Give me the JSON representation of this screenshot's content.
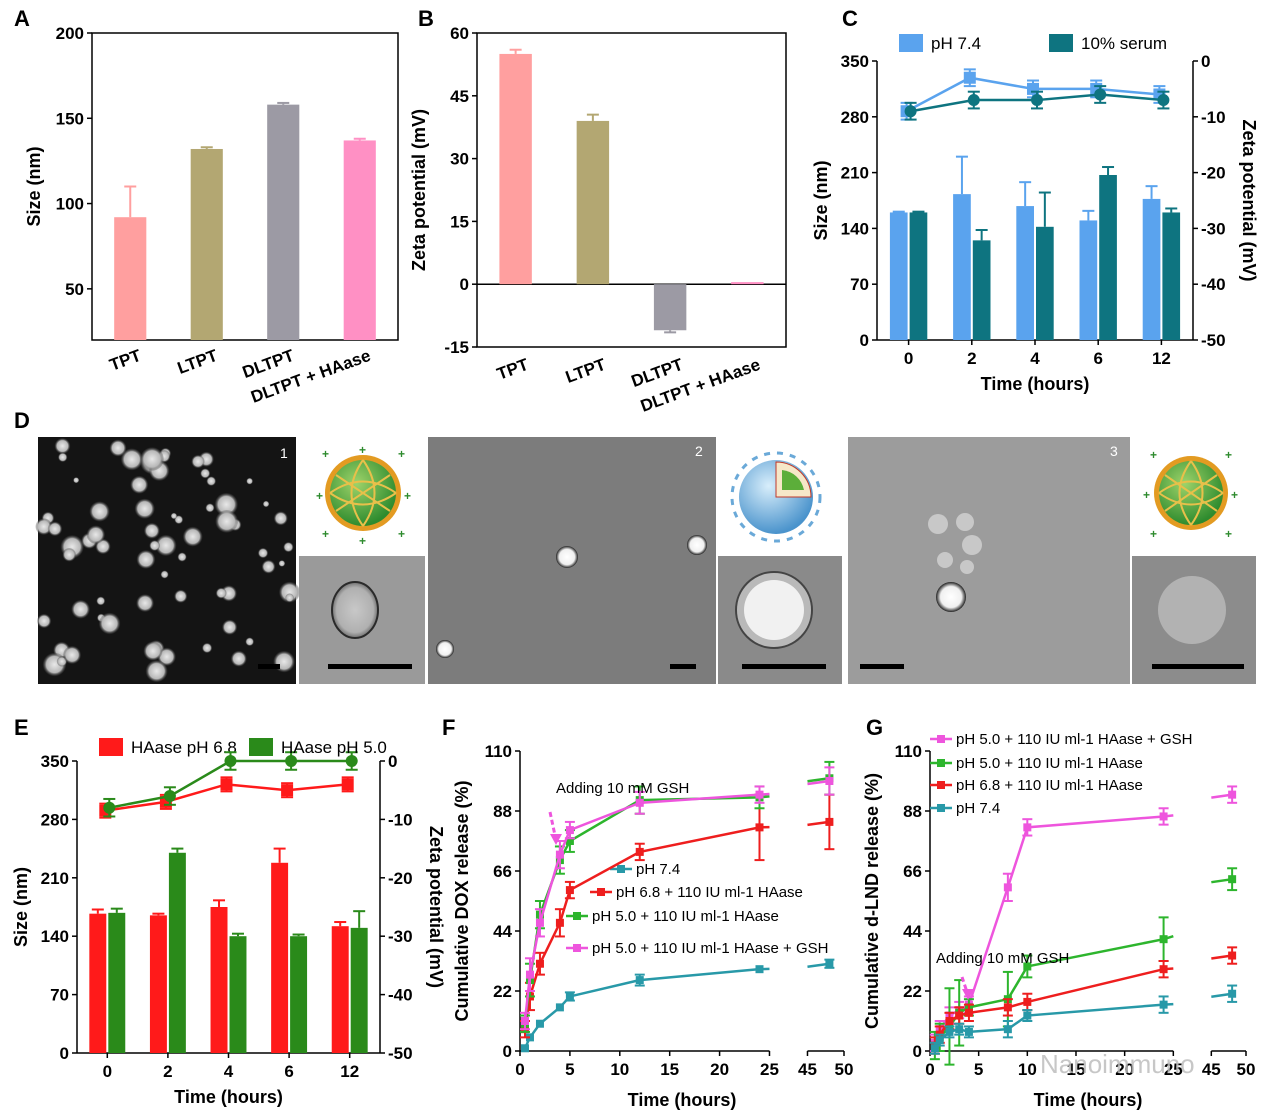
{
  "panel_labels": [
    "A",
    "B",
    "C",
    "D",
    "E",
    "F",
    "G"
  ],
  "watermark": "Nanoimmuno",
  "panel_d": {
    "image_numbers": [
      "1",
      "2",
      "3"
    ],
    "colors": {
      "tem_dark": "#1a1a1a",
      "tem_gray": "#8a8a8a",
      "sphere_green": "#2e8b2e",
      "sphere_orange": "#e39b22",
      "sphere_blue": "#6aa9d8"
    }
  },
  "chart_data": [
    {
      "panel": "A",
      "type": "bar",
      "categories": [
        "TPT",
        "LTPT",
        "DLTPT",
        "DLTPT + HAase"
      ],
      "values": [
        92,
        132,
        158,
        137
      ],
      "errors": [
        18,
        1,
        1,
        1
      ],
      "colors": [
        "#ff9f9f",
        "#b3a772",
        "#9c9aa4",
        "#ff90c4"
      ],
      "ylabel": "Size (nm)",
      "ylim": [
        20,
        200
      ],
      "yticks": [
        "50",
        "100",
        "150",
        "200"
      ]
    },
    {
      "panel": "B",
      "type": "bar",
      "categories": [
        "TPT",
        "LTPT",
        "DLTPT",
        "DLTPT + HAase"
      ],
      "values": [
        55,
        39,
        -11,
        0.5
      ],
      "errors": [
        1,
        1.5,
        0.5,
        0
      ],
      "colors": [
        "#ff9f9f",
        "#b3a772",
        "#9c9aa4",
        "#ff90c4"
      ],
      "ylabel": "Zeta potential (mV)",
      "ylim": [
        -15,
        60
      ],
      "yticks": [
        "-15",
        "0",
        "15",
        "30",
        "45",
        "60"
      ]
    },
    {
      "panel": "C",
      "type": "bar",
      "categories": [
        "0",
        "2",
        "4",
        "6",
        "12"
      ],
      "xlabel": "Time (hours)",
      "ylabel": "Size (nm)",
      "ylabel_right": "Zeta potential (mV)",
      "ylim": [
        0,
        350
      ],
      "ylim_right": [
        -50,
        0
      ],
      "yticks": [
        "0",
        "70",
        "140",
        "210",
        "280",
        "350"
      ],
      "yticks_right": [
        "0",
        "-10",
        "-20",
        "-30",
        "-40",
        "-50"
      ],
      "series": [
        {
          "name": "pH 7.4",
          "color": "#5aa3ee",
          "size": [
            160,
            183,
            168,
            150,
            177
          ],
          "size_err": [
            1,
            47,
            30,
            12,
            16
          ],
          "zeta": [
            -9,
            -3,
            -5,
            -5,
            -6
          ],
          "zeta_err": [
            1.5,
            1.5,
            1.5,
            1.5,
            1.5
          ]
        },
        {
          "name": "10% serum",
          "color": "#0e7480",
          "size": [
            160,
            125,
            142,
            207,
            160
          ],
          "size_err": [
            1,
            13,
            43,
            10,
            5
          ],
          "zeta": [
            -9,
            -7,
            -7,
            -6,
            -7
          ],
          "zeta_err": [
            1.5,
            1.5,
            1.5,
            1.5,
            1.5
          ]
        }
      ]
    },
    {
      "panel": "E",
      "type": "bar",
      "categories": [
        "0",
        "2",
        "4",
        "6",
        "12"
      ],
      "xlabel": "Time (hours)",
      "ylabel": "Size (nm)",
      "ylabel_right": "Zeta potential (mV)",
      "ylim": [
        0,
        350
      ],
      "ylim_right": [
        -50,
        0
      ],
      "yticks": [
        "0",
        "70",
        "140",
        "210",
        "280",
        "350"
      ],
      "yticks_right": [
        "0",
        "-10",
        "-20",
        "-30",
        "-40",
        "-50"
      ],
      "series": [
        {
          "name": "HAase pH 6.8",
          "color": "#ff1a1a",
          "size": [
            167,
            165,
            175,
            228,
            152
          ],
          "size_err": [
            5,
            2,
            8,
            17,
            5
          ],
          "zeta": [
            -8.5,
            -7,
            -4,
            -5,
            -4
          ],
          "zeta_err": [
            1.2,
            1.2,
            1.2,
            1.2,
            1.2
          ]
        },
        {
          "name": "HAase pH 5.0",
          "color": "#2a8a1a",
          "size": [
            168,
            240,
            140,
            140,
            150
          ],
          "size_err": [
            5,
            5,
            3,
            2,
            20
          ],
          "zeta": [
            -8,
            -6,
            0,
            0,
            0
          ],
          "zeta_err": [
            1.5,
            1.5,
            1.5,
            1.5,
            1.5
          ]
        }
      ]
    },
    {
      "panel": "F",
      "type": "line",
      "xlabel": "Time (hours)",
      "ylabel": "Cumulative DOX release (%)",
      "xlim": [
        0,
        50
      ],
      "axis_break": [
        25,
        45
      ],
      "ylim": [
        0,
        110
      ],
      "xticks": [
        "0",
        "5",
        "10",
        "15",
        "20",
        "25",
        "45",
        "50"
      ],
      "yticks": [
        "0",
        "22",
        "44",
        "66",
        "88",
        "110"
      ],
      "annotation": "Adding 10 mM GSH",
      "series": [
        {
          "name": "pH 7.4",
          "color": "#2899a8",
          "x": [
            0.5,
            1,
            2,
            4,
            5,
            12,
            24,
            48
          ],
          "y": [
            1,
            5,
            10,
            16,
            20,
            26,
            30,
            32
          ],
          "err": [
            0,
            0,
            0,
            0,
            1.5,
            2,
            0,
            1.5
          ]
        },
        {
          "name": "pH 6.8 + 110 IU ml-1 HAase",
          "color": "#ee1e1e",
          "x": [
            0.5,
            1,
            2,
            4,
            5,
            12,
            24,
            48
          ],
          "y": [
            8,
            20,
            32,
            47,
            59,
            73,
            82,
            84
          ],
          "err": [
            3,
            5,
            4,
            5,
            3,
            3,
            12,
            10
          ]
        },
        {
          "name": "pH 5.0 + 110 IU ml-1 HAase",
          "color": "#2db52d",
          "x": [
            0.5,
            1,
            2,
            4,
            5,
            12,
            24,
            48
          ],
          "y": [
            10,
            26,
            50,
            70,
            77,
            92,
            93,
            100
          ],
          "err": [
            3,
            6,
            5,
            5,
            4,
            5,
            4,
            6
          ]
        },
        {
          "name": "pH 5.0 + 110 IU ml-1 HAase + GSH",
          "color": "#ee55dd",
          "x": [
            0.5,
            1,
            2,
            4,
            5,
            12,
            24,
            48
          ],
          "y": [
            11,
            28,
            47,
            72,
            81,
            91,
            94,
            99
          ],
          "err": [
            3,
            6,
            5,
            5,
            3,
            4,
            3,
            5
          ]
        }
      ]
    },
    {
      "panel": "G",
      "type": "line",
      "xlabel": "Time (hours)",
      "ylabel": "Cumulative d-LND release (%)",
      "xlim": [
        0,
        50
      ],
      "axis_break": [
        25,
        45
      ],
      "ylim": [
        0,
        110
      ],
      "xticks": [
        "0",
        "5",
        "10",
        "15",
        "20",
        "25",
        "45",
        "50"
      ],
      "yticks": [
        "0",
        "22",
        "44",
        "66",
        "88",
        "110"
      ],
      "annotation": "Adding 10 mM GSH",
      "series": [
        {
          "name": "pH 5.0 + 110 IU ml-1 HAase + GSH",
          "color": "#ee55dd",
          "x": [
            0.5,
            1,
            2,
            3,
            4,
            8,
            10,
            24,
            48
          ],
          "y": [
            3,
            8,
            13,
            15,
            17,
            60,
            82,
            86,
            94
          ],
          "err": [
            3,
            3,
            3,
            3,
            3,
            5,
            3,
            3,
            3
          ]
        },
        {
          "name": "pH 5.0 + 110 IU ml-1 HAase",
          "color": "#2db52d",
          "x": [
            0.5,
            1,
            2,
            3,
            4,
            8,
            10,
            24,
            48
          ],
          "y": [
            2,
            5,
            9,
            14,
            16,
            19,
            31,
            41,
            63
          ],
          "err": [
            5,
            5,
            14,
            12,
            3,
            10,
            4,
            8,
            4
          ]
        },
        {
          "name": "pH 6.8 + 110 IU ml-1 HAase",
          "color": "#ee1e1e",
          "x": [
            0.5,
            1,
            2,
            3,
            4,
            8,
            10,
            24,
            48
          ],
          "y": [
            2,
            6,
            11,
            13,
            14,
            16,
            18,
            30,
            35
          ],
          "err": [
            3,
            3,
            3,
            3,
            3,
            3,
            3,
            3,
            3
          ]
        },
        {
          "name": "pH 7.4",
          "color": "#2899a8",
          "x": [
            0.5,
            1,
            2,
            3,
            4,
            8,
            10,
            24,
            48
          ],
          "y": [
            1,
            4,
            7,
            8,
            7,
            8,
            13,
            17,
            21
          ],
          "err": [
            2,
            2,
            2,
            2,
            2,
            3,
            2,
            3,
            3
          ]
        }
      ]
    }
  ]
}
